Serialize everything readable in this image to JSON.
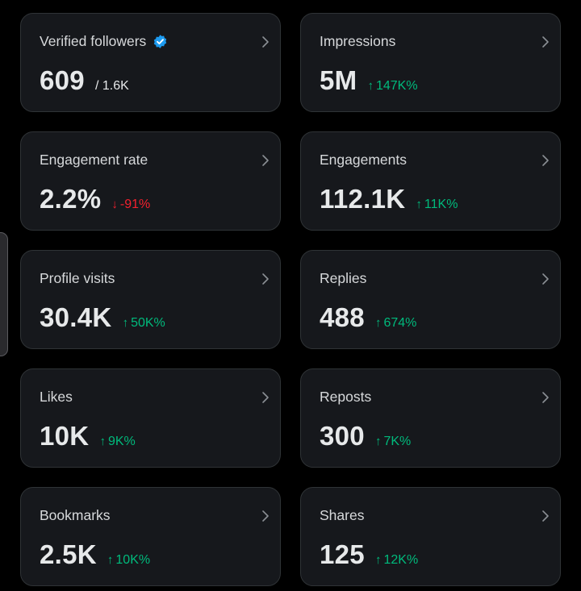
{
  "colors": {
    "background": "#000000",
    "card": "#16181c",
    "positive": "#00ba7c",
    "negative": "#f4212e",
    "verified_badge": "#1d9bf0"
  },
  "metrics": [
    {
      "title": "Verified followers",
      "value": "609",
      "sub": "/ 1.6K",
      "icon": "verified-badge-icon"
    },
    {
      "title": "Impressions",
      "value": "5M",
      "delta_arrow": "↑",
      "delta": "147K%",
      "trend": "up"
    },
    {
      "title": "Engagement rate",
      "value": "2.2%",
      "delta_arrow": "↓",
      "delta": "-91%",
      "trend": "down"
    },
    {
      "title": "Engagements",
      "value": "112.1K",
      "delta_arrow": "↑",
      "delta": "11K%",
      "trend": "up"
    },
    {
      "title": "Profile visits",
      "value": "30.4K",
      "delta_arrow": "↑",
      "delta": "50K%",
      "trend": "up"
    },
    {
      "title": "Replies",
      "value": "488",
      "delta_arrow": "↑",
      "delta": "674%",
      "trend": "up"
    },
    {
      "title": "Likes",
      "value": "10K",
      "delta_arrow": "↑",
      "delta": "9K%",
      "trend": "up"
    },
    {
      "title": "Reposts",
      "value": "300",
      "delta_arrow": "↑",
      "delta": "7K%",
      "trend": "up"
    },
    {
      "title": "Bookmarks",
      "value": "2.5K",
      "delta_arrow": "↑",
      "delta": "10K%",
      "trend": "up"
    },
    {
      "title": "Shares",
      "value": "125",
      "delta_arrow": "↑",
      "delta": "12K%",
      "trend": "up"
    }
  ]
}
